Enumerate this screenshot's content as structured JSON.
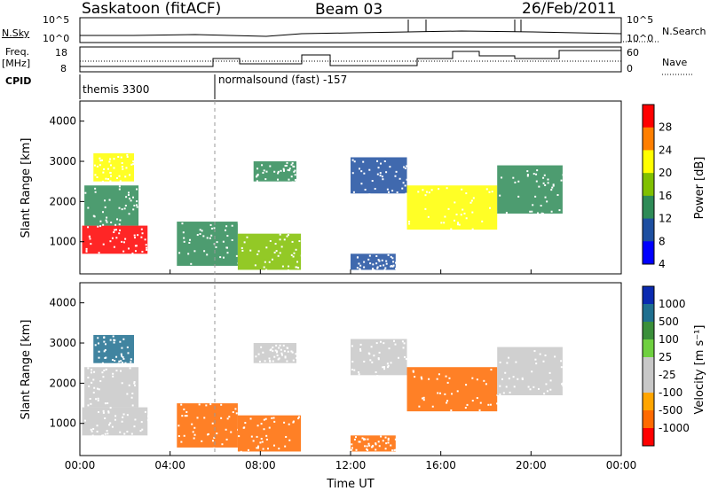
{
  "header": {
    "station": "Saskatoon (fitACF)",
    "beam": "Beam 03",
    "date": "26/Feb/2011"
  },
  "panels": {
    "nsky_label": "N.Sky",
    "nsky_ticks": [
      "10^5",
      "10^0"
    ],
    "nsearch_label": "N.Search",
    "nsearch_ticks": [
      "10^5",
      "10^0"
    ],
    "freq_label": "Freq.",
    "freq_unit": "[MHz]",
    "freq_ticks": [
      "18",
      "8"
    ],
    "nave_label": "Nave",
    "nave_ticks": [
      "60",
      "0"
    ],
    "cpid_label": "CPID",
    "cpid_modes": [
      "themis 3300",
      "normalsound (fast) -157"
    ]
  },
  "colorbars": {
    "power": {
      "label": "Power [dB]",
      "ticks": [
        "28",
        "24",
        "20",
        "16",
        "12",
        "8",
        "4"
      ],
      "colors": [
        "#ff0000",
        "#ff7f00",
        "#ffff00",
        "#80c000",
        "#2e8b57",
        "#1e4fa0",
        "#0000ff"
      ]
    },
    "velocity": {
      "label": "Velocity [m s⁻¹]",
      "ticks": [
        "1000",
        "500",
        "100",
        "25",
        "-25",
        "-100",
        "-500",
        "-1000"
      ],
      "colors": [
        "#0a2ab0",
        "#1f6f8f",
        "#3a8f3a",
        "#6fd040",
        "#c8c8c8",
        "#c8c8c8",
        "#ffa500",
        "#ff6a00",
        "#ff0000"
      ]
    }
  },
  "chart_data": [
    {
      "type": "heatmap",
      "title": "",
      "xlabel": "Time UT",
      "ylabel": "Slant Range [km]",
      "x_ticks": [
        "00:00",
        "04:00",
        "08:00",
        "12:00",
        "16:00",
        "20:00",
        "00:00"
      ],
      "y_ticks": [
        1000,
        2000,
        3000,
        4000
      ],
      "xlim_hours": [
        0,
        24
      ],
      "ylim_km": [
        200,
        4500
      ],
      "quantity": "Power",
      "unit": "dB",
      "scale": [
        0,
        30
      ],
      "regions": [
        {
          "t0": 0.1,
          "t1": 3.0,
          "r0": 700,
          "r1": 1400,
          "value": 26
        },
        {
          "t0": 0.2,
          "t1": 2.6,
          "r0": 1400,
          "r1": 2400,
          "value": 12
        },
        {
          "t0": 0.6,
          "t1": 2.4,
          "r0": 2500,
          "r1": 3200,
          "value": 20
        },
        {
          "t0": 4.3,
          "t1": 7.0,
          "r0": 400,
          "r1": 1500,
          "value": 10
        },
        {
          "t0": 7.0,
          "t1": 9.8,
          "r0": 300,
          "r1": 1200,
          "value": 14
        },
        {
          "t0": 7.7,
          "t1": 9.6,
          "r0": 2500,
          "r1": 3000,
          "value": 10
        },
        {
          "t0": 12.0,
          "t1": 14.5,
          "r0": 2200,
          "r1": 3100,
          "value": 8
        },
        {
          "t0": 14.5,
          "t1": 18.5,
          "r0": 1300,
          "r1": 2400,
          "value": 18
        },
        {
          "t0": 18.5,
          "t1": 21.4,
          "r0": 1700,
          "r1": 2900,
          "value": 10
        },
        {
          "t0": 12.0,
          "t1": 14.0,
          "r0": 300,
          "r1": 700,
          "value": 6
        }
      ]
    },
    {
      "type": "heatmap",
      "title": "",
      "xlabel": "Time UT",
      "ylabel": "Slant Range [km]",
      "x_ticks": [
        "00:00",
        "04:00",
        "08:00",
        "12:00",
        "16:00",
        "20:00",
        "00:00"
      ],
      "y_ticks": [
        1000,
        2000,
        3000,
        4000
      ],
      "xlim_hours": [
        0,
        24
      ],
      "ylim_km": [
        200,
        4500
      ],
      "quantity": "Velocity",
      "unit": "m s⁻¹",
      "scale": [
        -1000,
        1000
      ],
      "regions": [
        {
          "t0": 0.1,
          "t1": 3.0,
          "r0": 700,
          "r1": 1400,
          "value": 0
        },
        {
          "t0": 0.2,
          "t1": 2.6,
          "r0": 1400,
          "r1": 2400,
          "value": 0
        },
        {
          "t0": 0.6,
          "t1": 2.4,
          "r0": 2500,
          "r1": 3200,
          "value": 300
        },
        {
          "t0": 4.3,
          "t1": 7.0,
          "r0": 400,
          "r1": 1500,
          "value": -300
        },
        {
          "t0": 7.0,
          "t1": 9.8,
          "r0": 300,
          "r1": 1200,
          "value": -200
        },
        {
          "t0": 7.7,
          "t1": 9.6,
          "r0": 2500,
          "r1": 3000,
          "value": 0
        },
        {
          "t0": 12.0,
          "t1": 14.5,
          "r0": 2200,
          "r1": 3100,
          "value": 0
        },
        {
          "t0": 14.5,
          "t1": 18.5,
          "r0": 1300,
          "r1": 2400,
          "value": -300
        },
        {
          "t0": 18.5,
          "t1": 21.4,
          "r0": 1700,
          "r1": 2900,
          "value": 0
        },
        {
          "t0": 12.0,
          "t1": 14.0,
          "r0": 300,
          "r1": 700,
          "value": -150
        }
      ]
    }
  ]
}
